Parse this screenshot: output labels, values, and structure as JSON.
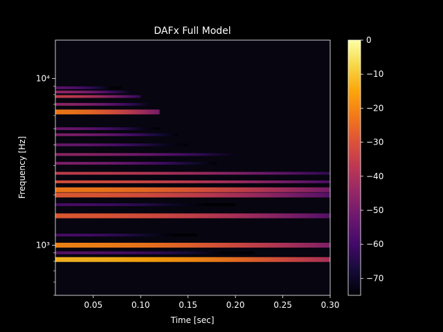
{
  "chart_data": {
    "type": "heatmap",
    "title": "DAFx Full Model",
    "xlabel": "Time [sec]",
    "ylabel": "Frequency [Hz]",
    "xlim": [
      0.01,
      0.3
    ],
    "ylim": [
      500,
      17000
    ],
    "yscale": "log",
    "xticks": [
      0.05,
      0.1,
      0.15,
      0.2,
      0.25,
      0.3
    ],
    "xtick_labels": [
      "0.05",
      "0.10",
      "0.15",
      "0.20",
      "0.25",
      "0.30"
    ],
    "yticks": [
      1000,
      10000
    ],
    "ytick_labels": [
      "10³",
      "10⁴"
    ],
    "colormap": "inferno",
    "background": "#000000",
    "colorbar": {
      "range": [
        -75,
        0
      ],
      "ticks": [
        0,
        -10,
        -20,
        -30,
        -40,
        -50,
        -60,
        -70
      ],
      "tick_labels": [
        "0",
        "−10",
        "−20",
        "−30",
        "−40",
        "−50",
        "−60",
        "−70"
      ]
    },
    "partials": [
      {
        "freq": 820,
        "level_db": -12,
        "decay_end": 0.3
      },
      {
        "freq": 1000,
        "level_db": -20,
        "decay_end": 0.3
      },
      {
        "freq": 900,
        "level_db": -55,
        "decay_end": 0.22
      },
      {
        "freq": 1150,
        "level_db": -58,
        "decay_end": 0.16
      },
      {
        "freq": 1500,
        "level_db": -28,
        "decay_end": 0.3
      },
      {
        "freq": 1750,
        "level_db": -58,
        "decay_end": 0.2
      },
      {
        "freq": 2000,
        "level_db": -28,
        "decay_end": 0.3
      },
      {
        "freq": 2150,
        "level_db": -22,
        "decay_end": 0.3
      },
      {
        "freq": 2400,
        "level_db": -30,
        "decay_end": 0.3
      },
      {
        "freq": 2700,
        "level_db": -35,
        "decay_end": 0.3
      },
      {
        "freq": 3100,
        "level_db": -48,
        "decay_end": 0.18
      },
      {
        "freq": 3500,
        "level_db": -45,
        "decay_end": 0.2
      },
      {
        "freq": 4000,
        "level_db": -52,
        "decay_end": 0.15
      },
      {
        "freq": 4600,
        "level_db": -48,
        "decay_end": 0.14
      },
      {
        "freq": 5000,
        "level_db": -52,
        "decay_end": 0.12
      },
      {
        "freq": 6300,
        "level_db": -22,
        "decay_end": 0.12
      },
      {
        "freq": 7000,
        "level_db": -45,
        "decay_end": 0.11
      },
      {
        "freq": 7800,
        "level_db": -35,
        "decay_end": 0.1
      },
      {
        "freq": 8300,
        "level_db": -45,
        "decay_end": 0.09
      },
      {
        "freq": 8800,
        "level_db": -55,
        "decay_end": 0.08
      }
    ]
  }
}
